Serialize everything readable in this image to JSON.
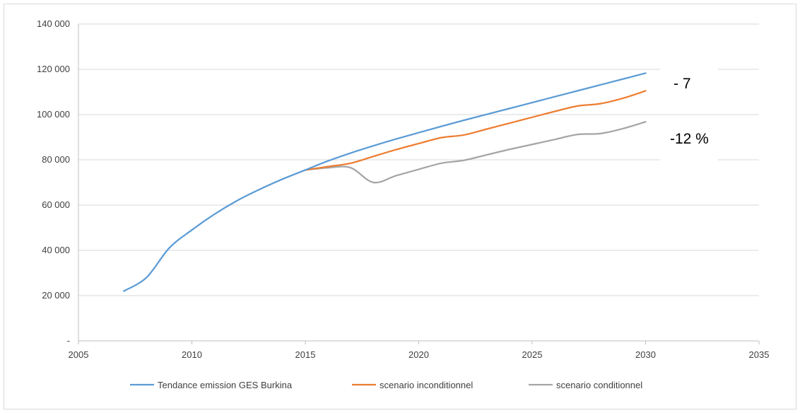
{
  "chart_data": {
    "type": "line",
    "title": "",
    "xlabel": "",
    "ylabel": "",
    "xlim": [
      2005,
      2035
    ],
    "ylim": [
      0,
      140000
    ],
    "x_ticks": [
      2005,
      2010,
      2015,
      2020,
      2025,
      2030,
      2035
    ],
    "x_tick_labels": [
      "2005",
      "2010",
      "2015",
      "2020",
      "2025",
      "2030",
      "2035"
    ],
    "y_ticks": [
      0,
      20000,
      40000,
      60000,
      80000,
      100000,
      120000,
      140000
    ],
    "y_tick_labels": [
      "-",
      "20 000",
      "40 000",
      "60 000",
      "80 000",
      "100 000",
      "120 000",
      "140 000"
    ],
    "grid": "horizontal",
    "legend_position": "bottom",
    "series": [
      {
        "name": "Tendance emission GES Burkina",
        "color": "#5b9bd5",
        "x": [
          2007,
          2008,
          2009,
          2010,
          2011,
          2012,
          2013,
          2014,
          2015,
          2016,
          2017,
          2018,
          2019,
          2020,
          2021,
          2022,
          2023,
          2024,
          2025,
          2026,
          2027,
          2028,
          2029,
          2030
        ],
        "y": [
          22000,
          28000,
          41000,
          49000,
          56000,
          62000,
          67000,
          71500,
          75500,
          79500,
          83000,
          86200,
          89200,
          92000,
          94800,
          97500,
          100100,
          102700,
          105300,
          107900,
          110500,
          113100,
          115700,
          118300
        ]
      },
      {
        "name": "scenario inconditionnel",
        "color": "#ed7d31",
        "x": [
          2015,
          2016,
          2017,
          2018,
          2019,
          2020,
          2021,
          2022,
          2023,
          2024,
          2025,
          2026,
          2027,
          2028,
          2029,
          2030
        ],
        "y": [
          75500,
          77000,
          78500,
          81500,
          84500,
          87200,
          89800,
          91000,
          93600,
          96200,
          98800,
          101400,
          103800,
          104800,
          107200,
          110500
        ]
      },
      {
        "name": "scenario conditionnel",
        "color": "#a5a5a5",
        "x": [
          2015,
          2016,
          2017,
          2018,
          2019,
          2020,
          2021,
          2022,
          2023,
          2024,
          2025,
          2026,
          2027,
          2028,
          2029,
          2030
        ],
        "y": [
          75500,
          76500,
          76500,
          70000,
          73000,
          75800,
          78500,
          79800,
          82200,
          84600,
          86800,
          89000,
          91200,
          91600,
          93800,
          96800
        ]
      }
    ],
    "annotations": [
      "- 7",
      "-12 %"
    ]
  }
}
